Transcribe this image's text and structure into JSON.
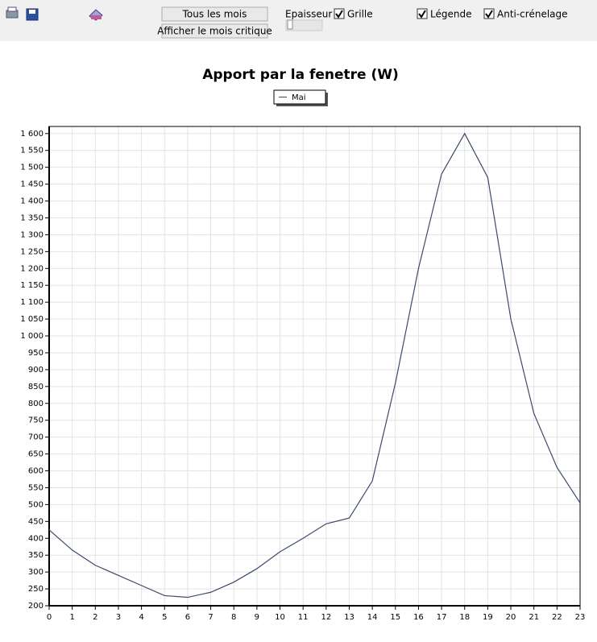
{
  "toolbar": {
    "buttons": [
      "Tous les mois",
      "Afficher le mois critique"
    ],
    "slider_label": "Epaisseur",
    "checkboxes": [
      {
        "label": "Grille",
        "checked": true
      },
      {
        "label": "Légende",
        "checked": true
      },
      {
        "label": "Anti-crénelage",
        "checked": true
      }
    ]
  },
  "chart_data": {
    "type": "line",
    "title": "Apport par la fenetre (W)",
    "x": [
      0,
      1,
      2,
      3,
      4,
      5,
      6,
      7,
      8,
      9,
      10,
      11,
      12,
      13,
      14,
      15,
      16,
      17,
      18,
      19,
      20,
      21,
      22,
      23
    ],
    "series": [
      {
        "name": "Mai",
        "color": "#3b4a6b",
        "values": [
          425,
          365,
          320,
          290,
          260,
          230,
          225,
          240,
          270,
          310,
          360,
          400,
          443,
          460,
          570,
          860,
          1200,
          1480,
          1600,
          1470,
          1050,
          770,
          610,
          505
        ]
      }
    ],
    "xlim": [
      0,
      23
    ],
    "xticks": [
      0,
      1,
      2,
      3,
      4,
      5,
      6,
      7,
      8,
      9,
      10,
      11,
      12,
      13,
      14,
      15,
      16,
      17,
      18,
      19,
      20,
      21,
      22,
      23
    ],
    "ylim": [
      200,
      1621
    ],
    "yticks": [
      200,
      250,
      300,
      350,
      400,
      450,
      500,
      550,
      600,
      650,
      700,
      750,
      800,
      850,
      900,
      950,
      {
        "value": 1000,
        "label": "1 000"
      },
      {
        "value": 1050,
        "label": "1 050"
      },
      {
        "value": 1100,
        "label": "1 100"
      },
      {
        "value": 1150,
        "label": "1 150"
      },
      {
        "value": 1200,
        "label": "1 200"
      },
      {
        "value": 1250,
        "label": "1 250"
      },
      {
        "value": 1300,
        "label": "1 300"
      },
      {
        "value": 1350,
        "label": "1 350"
      },
      {
        "value": 1400,
        "label": "1 400"
      },
      {
        "value": 1450,
        "label": "1 450"
      },
      {
        "value": 1500,
        "label": "1 500"
      },
      {
        "value": 1550,
        "label": "1 550"
      },
      {
        "value": 1600,
        "label": "1 600"
      }
    ],
    "grid": true,
    "legend": "top"
  }
}
